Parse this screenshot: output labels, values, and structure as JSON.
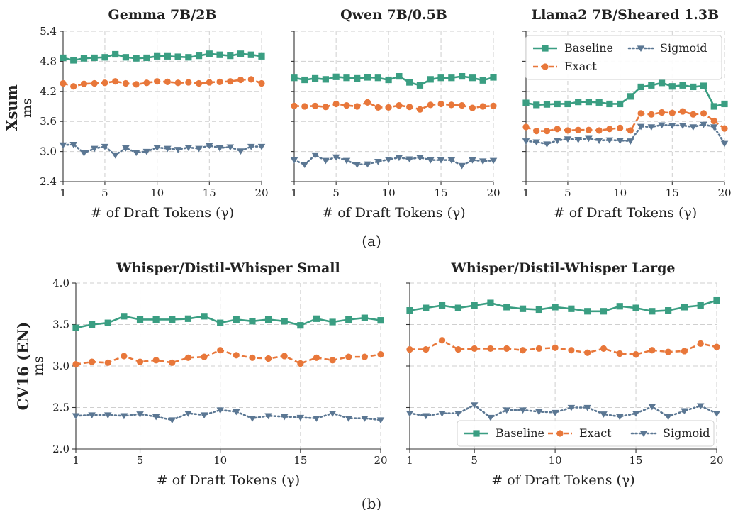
{
  "captions": [
    "(a)",
    "(b)"
  ],
  "row_labels": [
    {
      "bold": "Xsum",
      "unit": "ms"
    },
    {
      "bold": "CV16 (EN)",
      "unit": "ms"
    }
  ],
  "series_style": {
    "Baseline": {
      "color": "#3a9e82",
      "marker": "square",
      "dash": "solid"
    },
    "Exact": {
      "color": "#e8773a",
      "marker": "circle",
      "dash": "dashed"
    },
    "Sigmoid": {
      "color": "#5b7793",
      "marker": "triangle-down",
      "dash": "dotted"
    }
  },
  "chart_data": [
    {
      "type": "line",
      "title": "Gemma 7B/2B",
      "xlabel": "# of Draft Tokens (γ)",
      "ylabel": "ms",
      "xlim": [
        1,
        20
      ],
      "ylim": [
        2.4,
        5.4
      ],
      "xticks": [
        1,
        5,
        10,
        15,
        20
      ],
      "yticks": [
        2.4,
        3.0,
        3.6,
        4.2,
        4.8,
        5.4
      ],
      "ytick_labels": [
        "2.4",
        "3.0",
        "3.6",
        "4.2",
        "4.8",
        "5.4"
      ],
      "x": [
        1,
        2,
        3,
        4,
        5,
        6,
        7,
        8,
        9,
        10,
        11,
        12,
        13,
        14,
        15,
        16,
        17,
        18,
        19,
        20
      ],
      "series": [
        {
          "name": "Baseline",
          "values": [
            4.87,
            4.82,
            4.86,
            4.87,
            4.88,
            4.94,
            4.88,
            4.86,
            4.87,
            4.9,
            4.9,
            4.89,
            4.88,
            4.91,
            4.95,
            4.93,
            4.91,
            4.95,
            4.93,
            4.9
          ]
        },
        {
          "name": "Exact",
          "values": [
            4.36,
            4.3,
            4.35,
            4.36,
            4.37,
            4.4,
            4.36,
            4.34,
            4.37,
            4.4,
            4.39,
            4.37,
            4.38,
            4.36,
            4.38,
            4.39,
            4.4,
            4.43,
            4.44,
            4.36
          ]
        },
        {
          "name": "Sigmoid",
          "values": [
            3.13,
            3.14,
            2.97,
            3.06,
            3.1,
            2.93,
            3.07,
            2.98,
            3.0,
            3.08,
            3.06,
            3.04,
            3.08,
            3.06,
            3.12,
            3.07,
            3.09,
            3.01,
            3.1,
            3.1
          ]
        }
      ],
      "legend": null
    },
    {
      "type": "line",
      "title": "Qwen 7B/0.5B",
      "xlabel": "# of Draft Tokens (γ)",
      "ylabel": "",
      "xlim": [
        1,
        20
      ],
      "ylim": [
        2.4,
        5.4
      ],
      "xticks": [
        1,
        5,
        10,
        15,
        20
      ],
      "yticks": [
        2.4,
        3.0,
        3.6,
        4.2,
        4.8,
        5.4
      ],
      "ytick_labels": null,
      "x": [
        1,
        2,
        3,
        4,
        5,
        6,
        7,
        8,
        9,
        10,
        11,
        12,
        13,
        14,
        15,
        16,
        17,
        18,
        19,
        20
      ],
      "series": [
        {
          "name": "Baseline",
          "values": [
            4.47,
            4.43,
            4.46,
            4.44,
            4.49,
            4.47,
            4.46,
            4.48,
            4.47,
            4.43,
            4.5,
            4.38,
            4.32,
            4.44,
            4.47,
            4.47,
            4.5,
            4.47,
            4.42,
            4.48
          ]
        },
        {
          "name": "Exact",
          "values": [
            3.91,
            3.9,
            3.91,
            3.89,
            3.95,
            3.92,
            3.9,
            3.98,
            3.88,
            3.88,
            3.92,
            3.89,
            3.84,
            3.93,
            3.95,
            3.93,
            3.92,
            3.87,
            3.9,
            3.91
          ]
        },
        {
          "name": "Sigmoid",
          "values": [
            2.83,
            2.74,
            2.93,
            2.82,
            2.89,
            2.82,
            2.74,
            2.75,
            2.8,
            2.84,
            2.88,
            2.85,
            2.88,
            2.83,
            2.83,
            2.83,
            2.72,
            2.83,
            2.81,
            2.82
          ]
        }
      ],
      "legend": null
    },
    {
      "type": "line",
      "title": "Llama2 7B/Sheared 1.3B",
      "xlabel": "# of Draft Tokens (γ)",
      "ylabel": "",
      "xlim": [
        1,
        20
      ],
      "ylim": [
        2.4,
        5.4
      ],
      "xticks": [
        1,
        5,
        10,
        15,
        20
      ],
      "yticks": [
        2.4,
        3.0,
        3.6,
        4.2,
        4.8,
        5.4
      ],
      "ytick_labels": null,
      "x": [
        1,
        2,
        3,
        4,
        5,
        6,
        7,
        8,
        9,
        10,
        11,
        12,
        13,
        14,
        15,
        16,
        17,
        18,
        19,
        20
      ],
      "series": [
        {
          "name": "Baseline",
          "values": [
            3.97,
            3.93,
            3.94,
            3.95,
            3.95,
            3.99,
            3.99,
            3.98,
            3.95,
            3.95,
            4.1,
            4.29,
            4.32,
            4.37,
            4.3,
            4.32,
            4.29,
            4.31,
            3.9,
            3.95
          ]
        },
        {
          "name": "Exact",
          "values": [
            3.49,
            3.41,
            3.41,
            3.45,
            3.42,
            3.43,
            3.43,
            3.42,
            3.45,
            3.47,
            3.42,
            3.76,
            3.74,
            3.78,
            3.77,
            3.8,
            3.74,
            3.76,
            3.61,
            3.46
          ]
        },
        {
          "name": "Sigmoid",
          "values": [
            3.21,
            3.19,
            3.15,
            3.22,
            3.25,
            3.24,
            3.26,
            3.22,
            3.23,
            3.22,
            3.21,
            3.5,
            3.49,
            3.53,
            3.52,
            3.52,
            3.49,
            3.54,
            3.49,
            3.16
          ]
        }
      ],
      "legend": {
        "position": "top-right",
        "columns": 2,
        "entries": [
          "Baseline",
          "Sigmoid",
          "Exact"
        ]
      }
    },
    {
      "type": "line",
      "title": "Whisper/Distil-Whisper Small",
      "xlabel": "# of Draft Tokens (γ)",
      "ylabel": "ms",
      "xlim": [
        1,
        20
      ],
      "ylim": [
        2.0,
        4.0
      ],
      "xticks": [
        1,
        5,
        10,
        15,
        20
      ],
      "yticks": [
        2.0,
        2.5,
        3.0,
        3.5,
        4.0
      ],
      "ytick_labels": [
        "2.0",
        "2.5",
        "3.0",
        "3.5",
        "4.0"
      ],
      "x": [
        1,
        2,
        3,
        4,
        5,
        6,
        7,
        8,
        9,
        10,
        11,
        12,
        13,
        14,
        15,
        16,
        17,
        18,
        19,
        20
      ],
      "series": [
        {
          "name": "Baseline",
          "values": [
            3.46,
            3.5,
            3.52,
            3.6,
            3.56,
            3.56,
            3.56,
            3.57,
            3.6,
            3.52,
            3.56,
            3.54,
            3.56,
            3.54,
            3.49,
            3.57,
            3.53,
            3.56,
            3.58,
            3.55
          ]
        },
        {
          "name": "Exact",
          "values": [
            3.02,
            3.05,
            3.04,
            3.12,
            3.05,
            3.07,
            3.04,
            3.1,
            3.11,
            3.19,
            3.13,
            3.1,
            3.09,
            3.12,
            3.03,
            3.1,
            3.07,
            3.11,
            3.11,
            3.14
          ]
        },
        {
          "name": "Sigmoid",
          "values": [
            2.4,
            2.41,
            2.41,
            2.4,
            2.42,
            2.39,
            2.35,
            2.43,
            2.41,
            2.47,
            2.45,
            2.37,
            2.4,
            2.39,
            2.38,
            2.37,
            2.43,
            2.37,
            2.37,
            2.35
          ]
        }
      ],
      "legend": null
    },
    {
      "type": "line",
      "title": "Whisper/Distil-Whisper Large",
      "xlabel": "# of Draft Tokens (γ)",
      "ylabel": "",
      "xlim": [
        1,
        20
      ],
      "ylim": [
        2.0,
        4.0
      ],
      "xticks": [
        1,
        5,
        10,
        15,
        20
      ],
      "yticks": [
        2.0,
        2.5,
        3.0,
        3.5,
        4.0
      ],
      "ytick_labels": null,
      "x": [
        1,
        2,
        3,
        4,
        5,
        6,
        7,
        8,
        9,
        10,
        11,
        12,
        13,
        14,
        15,
        16,
        17,
        18,
        19,
        20
      ],
      "series": [
        {
          "name": "Baseline",
          "values": [
            3.67,
            3.7,
            3.73,
            3.7,
            3.73,
            3.76,
            3.71,
            3.69,
            3.68,
            3.71,
            3.69,
            3.66,
            3.66,
            3.72,
            3.7,
            3.66,
            3.67,
            3.71,
            3.73,
            3.79
          ]
        },
        {
          "name": "Exact",
          "values": [
            3.2,
            3.2,
            3.31,
            3.2,
            3.21,
            3.21,
            3.21,
            3.19,
            3.21,
            3.22,
            3.19,
            3.16,
            3.21,
            3.15,
            3.14,
            3.19,
            3.17,
            3.18,
            3.27,
            3.23
          ]
        },
        {
          "name": "Sigmoid",
          "values": [
            2.43,
            2.4,
            2.43,
            2.43,
            2.53,
            2.38,
            2.47,
            2.47,
            2.45,
            2.44,
            2.5,
            2.5,
            2.42,
            2.39,
            2.43,
            2.51,
            2.39,
            2.46,
            2.52,
            2.43
          ]
        }
      ],
      "legend": {
        "position": "bottom-right",
        "columns": 3,
        "entries": [
          "Baseline",
          "Exact",
          "Sigmoid"
        ]
      }
    }
  ]
}
